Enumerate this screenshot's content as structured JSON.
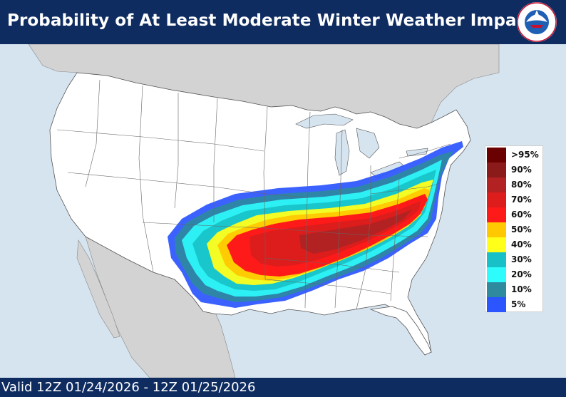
{
  "header": {
    "title": "Probability of At Least Moderate Winter Weather Impacts",
    "logo_text": "NATIONAL WEATHER SERVICE"
  },
  "footer": {
    "valid_text": "Valid 12Z 01/24/2026  - 12Z 01/25/2026"
  },
  "legend": {
    "items": [
      {
        "label": ">95%",
        "color": "#6b0000"
      },
      {
        "label": "90%",
        "color": "#8b1a1a"
      },
      {
        "label": "80%",
        "color": "#b22222"
      },
      {
        "label": "70%",
        "color": "#dd1c1c"
      },
      {
        "label": "60%",
        "color": "#ff1a1a"
      },
      {
        "label": "50%",
        "color": "#ffc800"
      },
      {
        "label": "40%",
        "color": "#ffff1a"
      },
      {
        "label": "30%",
        "color": "#17c1c7"
      },
      {
        "label": "20%",
        "color": "#2efcfc"
      },
      {
        "label": "10%",
        "color": "#2e8a9e"
      },
      {
        "label": "5%",
        "color": "#2a55ff"
      }
    ]
  },
  "colors": {
    "ocean": "#d6e4f0",
    "land_us": "#ffffff",
    "land_other": "#d3d3d3",
    "banner": "#0f2c61"
  }
}
